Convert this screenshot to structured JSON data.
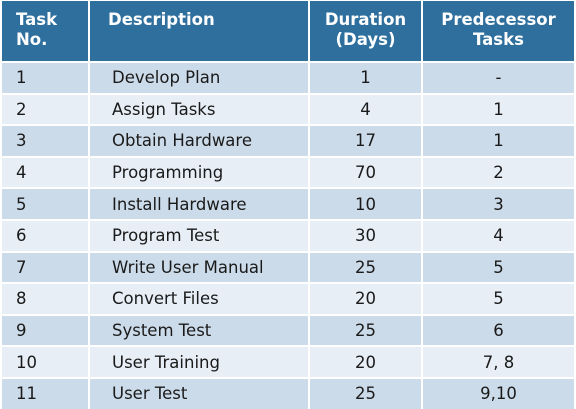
{
  "header": {
    "task_line1": "Task",
    "task_line2": "No.",
    "description": "Description",
    "duration_line1": "Duration",
    "duration_line2": "(Days)",
    "pred_line1": "Predecessor",
    "pred_line2": "Tasks"
  },
  "rows": [
    {
      "no": "1",
      "description": "Develop Plan",
      "duration": "1",
      "predecessors": "-"
    },
    {
      "no": "2",
      "description": "Assign Tasks",
      "duration": "4",
      "predecessors": "1"
    },
    {
      "no": "3",
      "description": "Obtain Hardware",
      "duration": "17",
      "predecessors": "1"
    },
    {
      "no": "4",
      "description": "Programming",
      "duration": "70",
      "predecessors": "2"
    },
    {
      "no": "5",
      "description": "Install Hardware",
      "duration": "10",
      "predecessors": "3"
    },
    {
      "no": "6",
      "description": "Program Test",
      "duration": "30",
      "predecessors": "4"
    },
    {
      "no": "7",
      "description": "Write User Manual",
      "duration": "25",
      "predecessors": "5"
    },
    {
      "no": "8",
      "description": "Convert Files",
      "duration": "20",
      "predecessors": "5"
    },
    {
      "no": "9",
      "description": "System Test",
      "duration": "25",
      "predecessors": "6"
    },
    {
      "no": "10",
      "description": "User Training",
      "duration": "20",
      "predecessors": "7, 8"
    },
    {
      "no": "11",
      "description": "User Test",
      "duration": "25",
      "predecessors": "9,10"
    }
  ],
  "colors": {
    "header_bg": "#2e6f9e",
    "row_odd": "#ccdbe9",
    "row_even": "#e7eef6"
  }
}
